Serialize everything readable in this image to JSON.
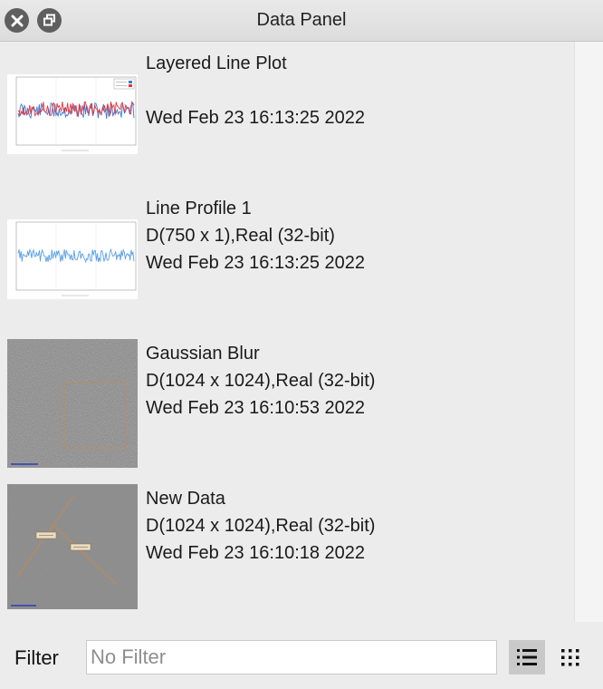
{
  "window": {
    "title": "Data Panel",
    "icons": {
      "close": "close-icon",
      "float": "float-window-icon"
    }
  },
  "items": [
    {
      "name": "Layered Line Plot",
      "detail": "",
      "timestamp": "Wed Feb 23 16:13:25 2022",
      "thumbnail": "layered-line-plot-thumbnail"
    },
    {
      "name": "Line Profile 1",
      "detail": "D(750 x 1),Real (32-bit)",
      "timestamp": "Wed Feb 23 16:13:25 2022",
      "thumbnail": "line-profile-thumbnail"
    },
    {
      "name": "Gaussian Blur",
      "detail": "D(1024 x 1024),Real (32-bit)",
      "timestamp": "Wed Feb 23 16:10:53 2022",
      "thumbnail": "noise-image-thumbnail"
    },
    {
      "name": "New Data",
      "detail": "D(1024 x 1024),Real (32-bit)",
      "timestamp": "Wed Feb 23 16:10:18 2022",
      "thumbnail": "image-with-annotations-thumbnail"
    }
  ],
  "footer": {
    "filter_label": "Filter",
    "filter_placeholder": "No Filter",
    "filter_value": "",
    "icons": {
      "list_view": "list-view-icon",
      "grid_view": "grid-view-icon"
    }
  },
  "colors": {
    "series_red": "#e8343a",
    "series_blue": "#3a7bd5",
    "roi_orange": "#c9894a"
  }
}
